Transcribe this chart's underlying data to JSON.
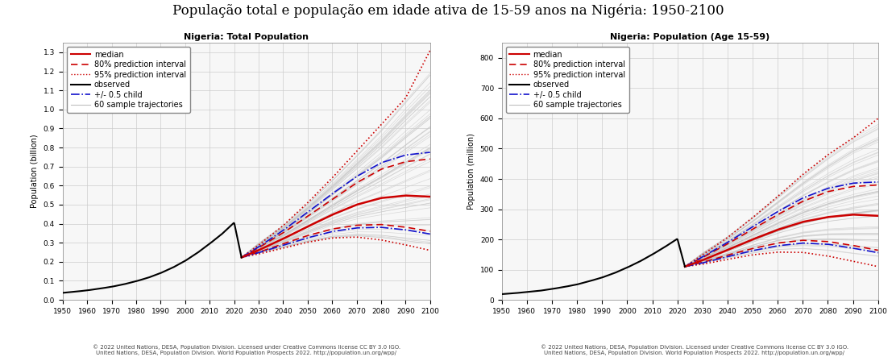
{
  "title": "População total e população em idade ativa de 15-59 anos na Nigéria: 1950-2100",
  "title_fontsize": 12,
  "subplot1_title": "Nigeria: Total Population",
  "subplot2_title": "Nigeria: Population (Age 15-59)",
  "ylabel1": "Population (billion)",
  "ylabel2": "Population (million)",
  "x_ticks": [
    1950,
    1960,
    1970,
    1980,
    1990,
    2000,
    2010,
    2020,
    2030,
    2040,
    2050,
    2060,
    2070,
    2080,
    2090,
    2100
  ],
  "obs_years": [
    1950,
    1955,
    1960,
    1965,
    1970,
    1975,
    1980,
    1985,
    1990,
    1995,
    2000,
    2005,
    2010,
    2015,
    2020,
    2023
  ],
  "obs_pop_billion": [
    0.037,
    0.043,
    0.05,
    0.059,
    0.069,
    0.082,
    0.098,
    0.117,
    0.141,
    0.17,
    0.205,
    0.247,
    0.295,
    0.346,
    0.406,
    0.223
  ],
  "proj_years_fine": [
    2023,
    2030,
    2040,
    2050,
    2060,
    2070,
    2080,
    2090,
    2100
  ],
  "median_pop_billion": [
    0.223,
    0.261,
    0.321,
    0.385,
    0.447,
    0.5,
    0.535,
    0.548,
    0.542
  ],
  "pi80_low_billion": [
    0.223,
    0.25,
    0.295,
    0.338,
    0.372,
    0.392,
    0.396,
    0.382,
    0.36
  ],
  "pi80_high_billion": [
    0.223,
    0.274,
    0.352,
    0.439,
    0.527,
    0.615,
    0.686,
    0.726,
    0.74
  ],
  "pi95_low_billion": [
    0.223,
    0.241,
    0.272,
    0.303,
    0.325,
    0.33,
    0.315,
    0.289,
    0.26
  ],
  "pi95_high_billion": [
    0.223,
    0.288,
    0.39,
    0.51,
    0.64,
    0.78,
    0.92,
    1.06,
    1.31
  ],
  "child_low_billion": [
    0.223,
    0.248,
    0.287,
    0.326,
    0.359,
    0.378,
    0.381,
    0.368,
    0.346
  ],
  "child_high_billion": [
    0.223,
    0.278,
    0.365,
    0.461,
    0.557,
    0.648,
    0.72,
    0.761,
    0.775
  ],
  "obs_pop_million_aw": [
    19,
    22,
    26,
    30,
    36,
    43,
    51,
    62,
    74,
    89,
    107,
    127,
    150,
    175,
    202,
    110
  ],
  "proj_years_aw": [
    2023,
    2030,
    2040,
    2050,
    2060,
    2070,
    2080,
    2090,
    2100
  ],
  "median_pop_million_aw": [
    110,
    131,
    165,
    200,
    232,
    258,
    274,
    282,
    278
  ],
  "pi80_low_million_aw": [
    110,
    124,
    148,
    170,
    188,
    197,
    193,
    180,
    164
  ],
  "pi80_high_million_aw": [
    110,
    140,
    185,
    234,
    282,
    326,
    358,
    375,
    380
  ],
  "pi95_low_million_aw": [
    110,
    118,
    134,
    149,
    158,
    157,
    145,
    128,
    110
  ],
  "pi95_high_million_aw": [
    110,
    149,
    206,
    272,
    342,
    415,
    480,
    535,
    600
  ],
  "child_low_million_aw": [
    110,
    122,
    143,
    163,
    179,
    188,
    184,
    171,
    156
  ],
  "child_high_million_aw": [
    110,
    142,
    190,
    242,
    292,
    337,
    369,
    386,
    390
  ],
  "ylim1": [
    0,
    1.35
  ],
  "ylim2": [
    0,
    850
  ],
  "yticks1": [
    0.0,
    0.1,
    0.2,
    0.3,
    0.4,
    0.5,
    0.6,
    0.7,
    0.8,
    0.9,
    1.0,
    1.1,
    1.2,
    1.3
  ],
  "yticks2": [
    0,
    100,
    200,
    300,
    400,
    500,
    600,
    700,
    800
  ],
  "color_median": "#CC0000",
  "color_80pi": "#CC0000",
  "color_95pi": "#CC0000",
  "color_obs": "#000000",
  "color_child": "#1111CC",
  "color_sample": "#C0C0C0",
  "color_grid": "#CCCCCC",
  "bg_color": "#FFFFFF",
  "plot_bg": "#F7F7F7",
  "footnote1": "© 2022 United Nations, DESA, Population Division. Licensed under Creative Commons license CC BY 3.0 IGO.",
  "footnote2": "United Nations, DESA, Population Division. World Population Prospects 2022. http://population.un.org/wpp/",
  "legend_entries": [
    "median",
    "80% prediction interval",
    "95% prediction interval",
    "observed",
    "+/- 0.5 child",
    "60 sample trajectories"
  ],
  "n_sample_trajectories": 60,
  "subtitle_fontsize": 8,
  "axis_fontsize": 7,
  "tick_fontsize": 6.5,
  "legend_fontsize": 7,
  "footnote_fontsize": 5
}
